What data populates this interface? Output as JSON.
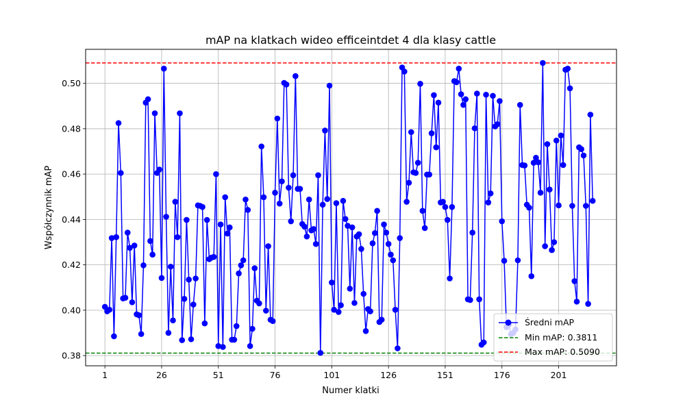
{
  "chart_data": {
    "type": "line",
    "title": "mAP na klatkach wideo efficeintdet 4 dla klasy cattle",
    "xlabel": "Numer klatki",
    "ylabel": "Współczynnik mAP",
    "xlim": [
      -7.5,
      226.5
    ],
    "ylim": [
      0.3755,
      0.515
    ],
    "x_ticks": [
      1,
      26,
      51,
      76,
      101,
      126,
      151,
      176,
      201
    ],
    "y_ticks": [
      "0.38",
      "0.40",
      "0.42",
      "0.44",
      "0.46",
      "0.48",
      "0.50"
    ],
    "y_tick_values": [
      0.38,
      0.4,
      0.42,
      0.44,
      0.46,
      0.48,
      0.5
    ],
    "grid": true,
    "legend_position": "lower-right",
    "colors": {
      "series": "#0000ff",
      "min_line": "#008000",
      "max_line": "#ff0000"
    },
    "series": [
      {
        "name": "Średni mAP",
        "x_start": 1,
        "values": [
          0.4015,
          0.3995,
          0.4002,
          0.4318,
          0.3885,
          0.4322,
          0.4825,
          0.4605,
          0.4052,
          0.4055,
          0.4342,
          0.4275,
          0.4035,
          0.4285,
          0.3982,
          0.3978,
          0.3895,
          0.4198,
          0.4915,
          0.493,
          0.4305,
          0.4245,
          0.4868,
          0.4605,
          0.462,
          0.4142,
          0.5065,
          0.4412,
          0.39,
          0.4192,
          0.3955,
          0.4478,
          0.4322,
          0.4868,
          0.3868,
          0.405,
          0.4398,
          0.4135,
          0.3872,
          0.4025,
          0.414,
          0.4462,
          0.446,
          0.4455,
          0.3942,
          0.4398,
          0.4225,
          0.4232,
          0.4235,
          0.46,
          0.3842,
          0.4378,
          0.3838,
          0.4498,
          0.4338,
          0.4365,
          0.387,
          0.387,
          0.393,
          0.4162,
          0.4198,
          0.422,
          0.4488,
          0.4442,
          0.3842,
          0.3918,
          0.4185,
          0.4042,
          0.403,
          0.4722,
          0.4498,
          0.3998,
          0.4282,
          0.3958,
          0.3952,
          0.4518,
          0.4845,
          0.447,
          0.4568,
          0.5002,
          0.4995,
          0.454,
          0.4392,
          0.4595,
          0.5032,
          0.4535,
          0.4535,
          0.438,
          0.4368,
          0.4325,
          0.4488,
          0.4352,
          0.4358,
          0.4292,
          0.4595,
          0.3812,
          0.4465,
          0.4792,
          0.449,
          0.499,
          0.4122,
          0.4002,
          0.4472,
          0.3992,
          0.4022,
          0.4482,
          0.4402,
          0.4372,
          0.4095,
          0.4365,
          0.4032,
          0.4325,
          0.4335,
          0.427,
          0.4072,
          0.3908,
          0.4005,
          0.3995,
          0.4295,
          0.434,
          0.4438,
          0.3948,
          0.3958,
          0.4378,
          0.4342,
          0.4292,
          0.4245,
          0.422,
          0.4002,
          0.3832,
          0.4318,
          0.507,
          0.5052,
          0.4478,
          0.4562,
          0.4785,
          0.4608,
          0.4605,
          0.465,
          0.4998,
          0.4438,
          0.4362,
          0.4598,
          0.4598,
          0.478,
          0.4948,
          0.4718,
          0.4915,
          0.4475,
          0.4478,
          0.4455,
          0.4398,
          0.414,
          0.4455,
          0.501,
          0.5005,
          0.5065,
          0.4952,
          0.4905,
          0.493,
          0.4048,
          0.4045,
          0.4342,
          0.4802,
          0.4955,
          0.4048,
          0.3848,
          0.3858,
          0.495,
          0.4475,
          0.4515,
          0.4945,
          0.481,
          0.482,
          0.4922,
          0.4392,
          0.4218,
          0.3925,
          0.3935,
          0.3895,
          0.39,
          0.3915,
          0.422,
          0.4905,
          0.464,
          0.4638,
          0.4465,
          0.4452,
          0.415,
          0.465,
          0.4672,
          0.4652,
          0.4518,
          0.509,
          0.4282,
          0.4732,
          0.4532,
          0.4265,
          0.43,
          0.4748,
          0.4462,
          0.477,
          0.464,
          0.506,
          0.5065,
          0.4978,
          0.446,
          0.4128,
          0.4038,
          0.4718,
          0.471,
          0.4682,
          0.446,
          0.4028,
          0.4862,
          0.4482
        ]
      }
    ],
    "reference_lines": [
      {
        "label": "Min mAP: 0.3811",
        "value": 0.3811
      },
      {
        "label": "Max mAP: 0.5090",
        "value": 0.509
      }
    ]
  }
}
